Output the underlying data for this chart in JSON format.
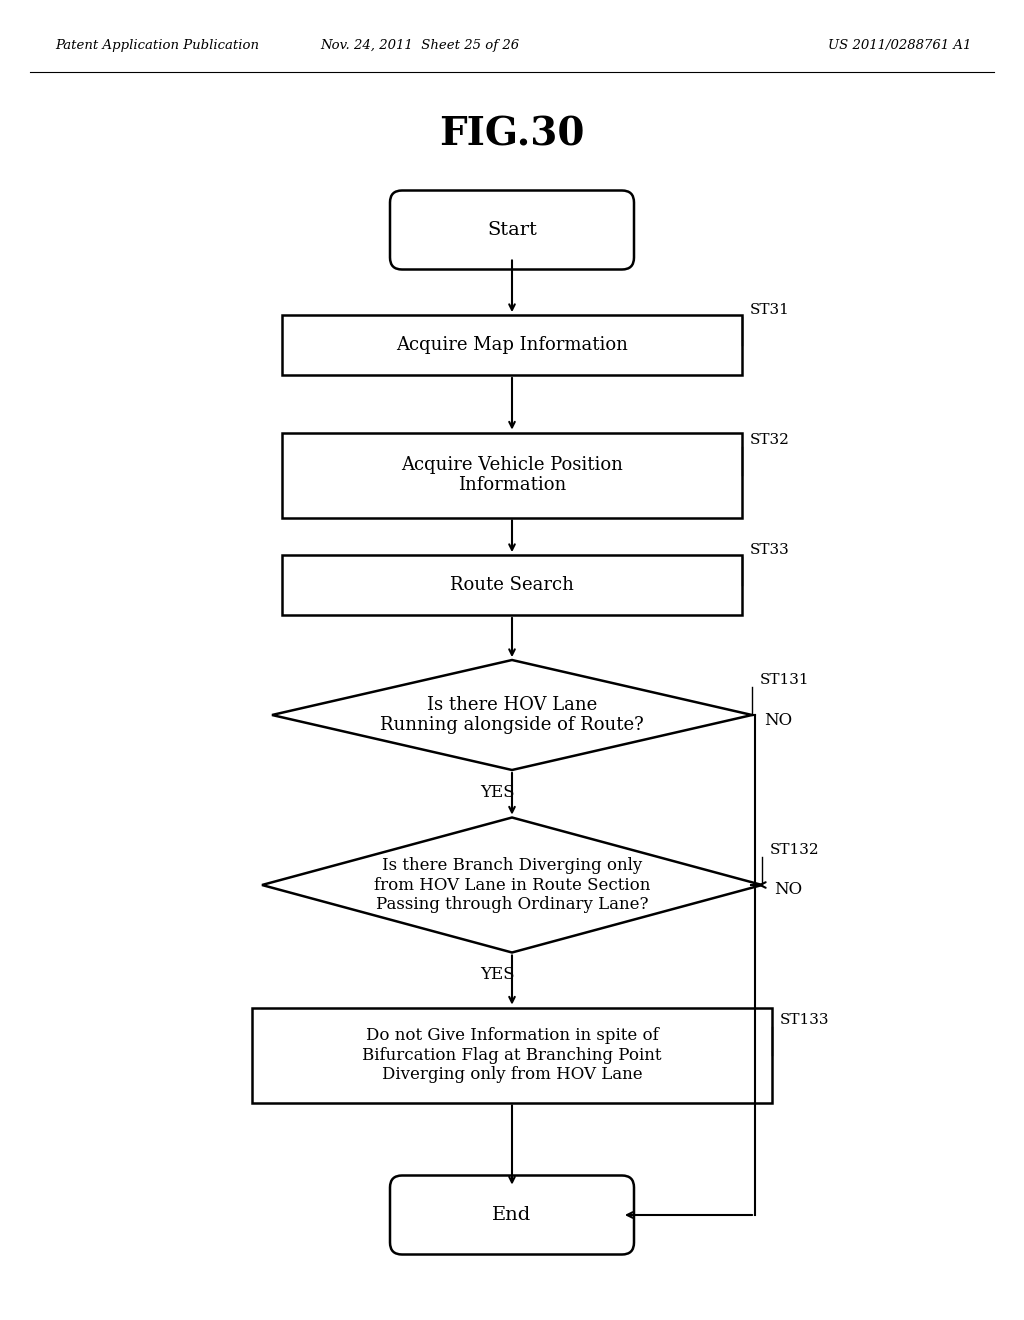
{
  "title": "FIG.30",
  "header_left": "Patent Application Publication",
  "header_mid": "Nov. 24, 2011  Sheet 25 of 26",
  "header_right": "US 2011/0288761 A1",
  "background_color": "#ffffff",
  "fig_width": 10.24,
  "fig_height": 13.2,
  "dpi": 100,
  "start_label": "Start",
  "end_label": "End",
  "st31_label": "Acquire Map Information",
  "st31_tag": "ST31",
  "st32_label": "Acquire Vehicle Position\nInformation",
  "st32_tag": "ST32",
  "st33_label": "Route Search",
  "st33_tag": "ST33",
  "st131_label": "Is there HOV Lane\nRunning alongside of Route?",
  "st131_tag": "ST131",
  "st131_no": "NO",
  "st131_yes": "YES",
  "st132_label": "Is there Branch Diverging only\nfrom HOV Lane in Route Section\nPassing through Ordinary Lane?",
  "st132_tag": "ST132",
  "st132_no": "NO",
  "st132_yes": "YES",
  "st133_label": "Do not Give Information in spite of\nBifurcation Flag at Branching Point\nDiverging only from HOV Lane",
  "st133_tag": "ST133"
}
